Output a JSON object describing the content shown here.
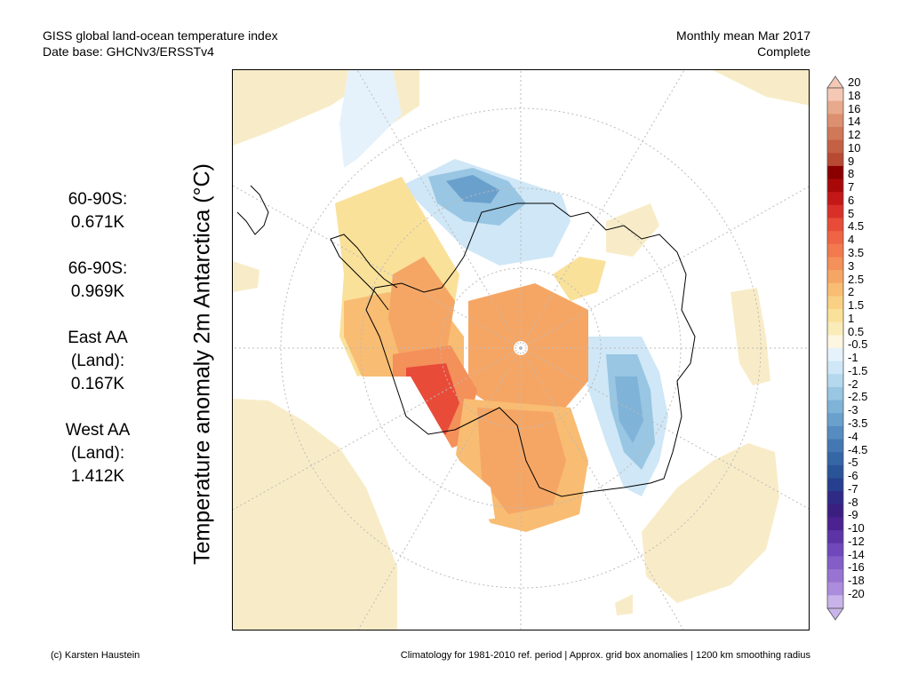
{
  "header": {
    "line1_left": "GISS global land-ocean temperature index",
    "line2_left": "Date base: GHCNv3/ERSSTv4",
    "line1_right": "Monthly mean Mar 2017",
    "line2_right": "Complete"
  },
  "stats": [
    {
      "label": "60-90S:",
      "value": "0.671K"
    },
    {
      "label": "66-90S:",
      "value": "0.969K"
    },
    {
      "label": "East AA\n(Land):",
      "value": "0.167K"
    },
    {
      "label": "West AA\n(Land):",
      "value": "1.412K"
    }
  ],
  "ylabel": "Temperature anomaly 2m Antarctica (°C)",
  "colorbar": {
    "labels": [
      "20",
      "18",
      "16",
      "14",
      "12",
      "10",
      "9",
      "8",
      "7",
      "6",
      "5",
      "4.5",
      "4",
      "3.5",
      "3",
      "2.5",
      "2",
      "1.5",
      "1",
      "0.5",
      "-0.5",
      "-1",
      "-1.5",
      "-2",
      "-2.5",
      "-3",
      "-3.5",
      "-4",
      "-4.5",
      "-5",
      "-6",
      "-7",
      "-8",
      "-9",
      "-10",
      "-12",
      "-14",
      "-16",
      "-18",
      "-20"
    ],
    "colors": [
      "#f4c8b4",
      "#e8aa8c",
      "#dc9070",
      "#d07858",
      "#c46044",
      "#b84a34",
      "#8a0000",
      "#a80808",
      "#c41818",
      "#d83028",
      "#e84c38",
      "#ee6444",
      "#f27a4e",
      "#f4905a",
      "#f6a664",
      "#f8bc72",
      "#f9d084",
      "#fae19a",
      "#faecb8",
      "#fdf6e0",
      "#e6f2fb",
      "#cfe7f6",
      "#b4d8ee",
      "#98c6e3",
      "#7fb3d8",
      "#6aa0cc",
      "#568cbf",
      "#4478b2",
      "#3566a5",
      "#2a5498",
      "#263f8e",
      "#2e2a86",
      "#3a1f80",
      "#4b2290",
      "#5c34a6",
      "#7048bc",
      "#845ec8",
      "#9874d2",
      "#ac8cdc",
      "#c8b4ea"
    ]
  },
  "footer": {
    "left": "(c) Karsten Haustein",
    "right": "Climatology for 1981-2010 ref. period | Approx. grid box anomalies | 1200 km smoothing radius"
  }
}
